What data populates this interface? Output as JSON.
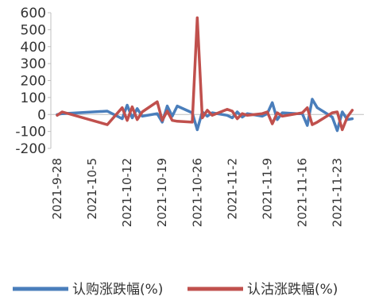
{
  "chart_data": {
    "type": "line",
    "title": "",
    "xlabel": "",
    "ylabel": "",
    "ylim": [
      -200,
      600
    ],
    "yticks": [
      -200,
      -100,
      0,
      100,
      200,
      300,
      400,
      500,
      600
    ],
    "y_tick_labels": [
      "-200",
      "-100",
      "0",
      "100",
      "200",
      "300",
      "400",
      "500",
      "600"
    ],
    "x_range": [
      "2021-09-28",
      "2021-11-28"
    ],
    "x_tick_labels": [
      "2021-9-28",
      "2021-10-5",
      "2021-10-12",
      "2021-10-19",
      "2021-10-26",
      "2021-11-2",
      "2021-11-9",
      "2021-11-16",
      "2021-11-23"
    ],
    "grid": false,
    "legend_position": "bottom",
    "series": [
      {
        "name": "认购涨跌幅(%)",
        "color": "#4a7ebb",
        "x": [
          "2021-09-28",
          "2021-09-29",
          "2021-10-08",
          "2021-10-11",
          "2021-10-12",
          "2021-10-13",
          "2021-10-14",
          "2021-10-15",
          "2021-10-18",
          "2021-10-19",
          "2021-10-20",
          "2021-10-21",
          "2021-10-22",
          "2021-10-25",
          "2021-10-26",
          "2021-10-27",
          "2021-10-28",
          "2021-10-29",
          "2021-11-01",
          "2021-11-02",
          "2021-11-03",
          "2021-11-04",
          "2021-11-05",
          "2021-11-08",
          "2021-11-09",
          "2021-11-10",
          "2021-11-11",
          "2021-11-12",
          "2021-11-15",
          "2021-11-16",
          "2021-11-17",
          "2021-11-18",
          "2021-11-19",
          "2021-11-22",
          "2021-11-23",
          "2021-11-24",
          "2021-11-25",
          "2021-11-26"
        ],
        "values": [
          0,
          5,
          20,
          -25,
          55,
          -20,
          35,
          -10,
          5,
          -45,
          50,
          -10,
          50,
          10,
          -90,
          15,
          -10,
          10,
          -5,
          -20,
          15,
          -15,
          5,
          -10,
          5,
          70,
          -30,
          10,
          5,
          5,
          -65,
          90,
          40,
          -15,
          -95,
          15,
          -30,
          -25
        ]
      },
      {
        "name": "认沽涨跌幅(%)",
        "color": "#c0504d",
        "x": [
          "2021-09-28",
          "2021-09-29",
          "2021-10-08",
          "2021-10-11",
          "2021-10-12",
          "2021-10-13",
          "2021-10-14",
          "2021-10-15",
          "2021-10-18",
          "2021-10-19",
          "2021-10-20",
          "2021-10-21",
          "2021-10-22",
          "2021-10-25",
          "2021-10-26",
          "2021-10-27",
          "2021-10-28",
          "2021-10-29",
          "2021-11-01",
          "2021-11-02",
          "2021-11-03",
          "2021-11-04",
          "2021-11-05",
          "2021-11-08",
          "2021-11-09",
          "2021-11-10",
          "2021-11-11",
          "2021-11-12",
          "2021-11-15",
          "2021-11-16",
          "2021-11-17",
          "2021-11-18",
          "2021-11-19",
          "2021-11-22",
          "2021-11-23",
          "2021-11-24",
          "2021-11-25",
          "2021-11-26"
        ],
        "values": [
          -5,
          15,
          -60,
          40,
          -35,
          45,
          -30,
          15,
          75,
          -35,
          20,
          -35,
          -40,
          -45,
          570,
          -20,
          25,
          -5,
          30,
          20,
          -25,
          5,
          -5,
          5,
          15,
          -55,
          10,
          -10,
          5,
          10,
          40,
          -60,
          -45,
          10,
          15,
          -90,
          -15,
          25
        ]
      }
    ]
  }
}
